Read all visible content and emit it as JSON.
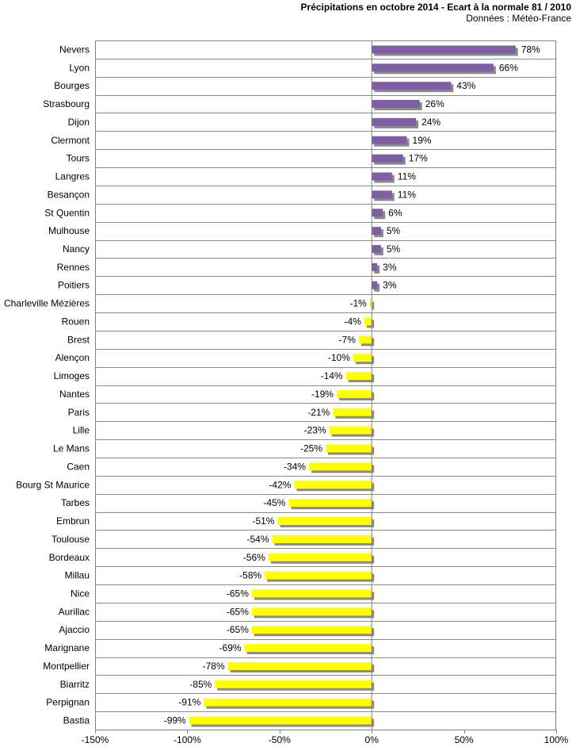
{
  "chart_data": {
    "type": "bar",
    "orientation": "horizontal",
    "title": "Précipitations en octobre 2014 - Ecart à la normale 81 / 2010",
    "subtitle": "Données : Météo-France",
    "xlim": [
      -150,
      100
    ],
    "xticks": [
      -150,
      -100,
      -50,
      0,
      50,
      100
    ],
    "xtick_labels": [
      "-150%",
      "-100%",
      "-50%",
      "0%",
      "50%",
      "100%"
    ],
    "grid": "horizontal",
    "legend": "none",
    "categories": [
      "Nevers",
      "Lyon",
      "Bourges",
      "Strasbourg",
      "Dijon",
      "Clermont",
      "Tours",
      "Langres",
      "Besançon",
      "St Quentin",
      "Mulhouse",
      "Nancy",
      "Rennes",
      "Poitiers",
      "Charleville Mézières",
      "Rouen",
      "Brest",
      "Alençon",
      "Limoges",
      "Nantes",
      "Paris",
      "Lille",
      "Le Mans",
      "Caen",
      "Bourg St Maurice",
      "Tarbes",
      "Embrun",
      "Toulouse",
      "Bordeaux",
      "Millau",
      "Nice",
      "Aurillac",
      "Ajaccio",
      "Marignane",
      "Montpellier",
      "Biarritz",
      "Perpignan",
      "Bastia"
    ],
    "values": [
      78,
      66,
      43,
      26,
      24,
      19,
      17,
      11,
      11,
      6,
      5,
      5,
      3,
      3,
      -1,
      -4,
      -7,
      -10,
      -14,
      -19,
      -21,
      -23,
      -25,
      -34,
      -42,
      -45,
      -51,
      -54,
      -56,
      -58,
      -65,
      -65,
      -65,
      -69,
      -78,
      -85,
      -91,
      -99
    ],
    "value_labels": [
      "78%",
      "66%",
      "43%",
      "26%",
      "24%",
      "19%",
      "17%",
      "11%",
      "11%",
      "6%",
      "5%",
      "5%",
      "3%",
      "3%",
      "-1%",
      "-4%",
      "-7%",
      "-10%",
      "-14%",
      "-19%",
      "-21%",
      "-23%",
      "-25%",
      "-34%",
      "-42%",
      "-45%",
      "-51%",
      "-54%",
      "-56%",
      "-58%",
      "-65%",
      "-65%",
      "-65%",
      "-69%",
      "-78%",
      "-85%",
      "-91%",
      "-99%"
    ],
    "colors": {
      "positive": "#7f5fa4",
      "negative": "#ffff00",
      "shadow": "#8a8a8a",
      "grid": "#8c8c8c",
      "axis": "#808080"
    }
  }
}
